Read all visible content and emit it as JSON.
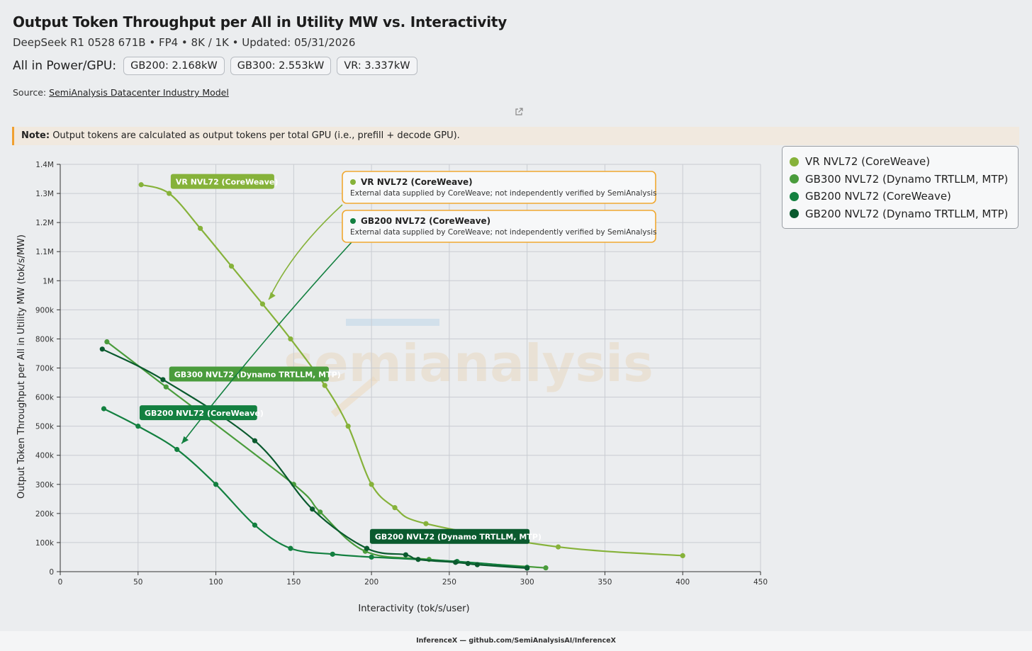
{
  "header": {
    "title": "Output Token Throughput per All in Utility MW vs. Interactivity",
    "subtitle": "DeepSeek R1 0528 671B • FP4 • 8K / 1K • Updated: 05/31/2026",
    "power_label": "All in Power/GPU:",
    "power_pills": [
      "GB200: 2.168kW",
      "GB300: 2.553kW",
      "VR: 3.337kW"
    ],
    "source_label": "Source:",
    "source_link": "SemiAnalysis Datacenter Industry Model"
  },
  "note": {
    "label": "Note:",
    "text": "Output tokens are calculated as output tokens per total GPU (i.e., prefill + decode GPU)."
  },
  "footer": {
    "text": "InferenceX — github.com/SemiAnalysisAI/InferenceX"
  },
  "watermark": {
    "text": "semianalysis"
  },
  "colors": {
    "vr": "#86b23a",
    "gb300": "#4a9c3c",
    "gb200_cw": "#138040",
    "gb200_dyn": "#0a5a2e",
    "note_accent": "#f0a030"
  },
  "chart_data": {
    "type": "line",
    "xlabel": "Interactivity (tok/s/user)",
    "ylabel": "Output Token Throughput per All in Utility MW (tok/s/MW)",
    "xlim": [
      0,
      450
    ],
    "ylim": [
      0,
      1400000
    ],
    "x_ticks": [
      0,
      50,
      100,
      150,
      200,
      250,
      300,
      350,
      400,
      450
    ],
    "x_tick_labels": [
      "0",
      "50",
      "100",
      "150",
      "200",
      "250",
      "300",
      "350",
      "400",
      "450"
    ],
    "y_ticks": [
      0,
      100000,
      200000,
      300000,
      400000,
      500000,
      600000,
      700000,
      800000,
      900000,
      1000000,
      1100000,
      1200000,
      1300000,
      1400000
    ],
    "y_tick_labels": [
      "0",
      "100k",
      "200k",
      "300k",
      "400k",
      "500k",
      "600k",
      "700k",
      "800k",
      "900k",
      "1M",
      "1.1M",
      "1.2M",
      "1.3M",
      "1.4M"
    ],
    "grid": true,
    "legend_position": "right",
    "series": [
      {
        "name": "VR NVL72 (CoreWeave)",
        "color": "#86b23a",
        "points": [
          [
            52,
            1330000
          ],
          [
            70,
            1300000
          ],
          [
            90,
            1180000
          ],
          [
            110,
            1050000
          ],
          [
            130,
            920000
          ],
          [
            148,
            800000
          ],
          [
            170,
            640000
          ],
          [
            185,
            500000
          ],
          [
            200,
            300000
          ],
          [
            215,
            220000
          ],
          [
            235,
            165000
          ],
          [
            320,
            85000
          ],
          [
            400,
            55000
          ]
        ]
      },
      {
        "name": "GB300 NVL72 (Dynamo TRTLLM, MTP)",
        "color": "#4a9c3c",
        "points": [
          [
            30,
            790000
          ],
          [
            68,
            635000
          ],
          [
            150,
            300000
          ],
          [
            167,
            205000
          ],
          [
            196,
            70000
          ],
          [
            237,
            42000
          ],
          [
            312,
            13000
          ]
        ]
      },
      {
        "name": "GB200 NVL72 (CoreWeave)",
        "color": "#138040",
        "points": [
          [
            28,
            560000
          ],
          [
            50,
            500000
          ],
          [
            75,
            420000
          ],
          [
            100,
            300000
          ],
          [
            125,
            160000
          ],
          [
            148,
            80000
          ],
          [
            175,
            60000
          ],
          [
            200,
            50000
          ],
          [
            255,
            35000
          ],
          [
            300,
            15000
          ]
        ]
      },
      {
        "name": "GB200 NVL72 (Dynamo TRTLLM, MTP)",
        "color": "#0a5a2e",
        "points": [
          [
            27,
            765000
          ],
          [
            66,
            660000
          ],
          [
            125,
            450000
          ],
          [
            162,
            215000
          ],
          [
            197,
            80000
          ],
          [
            222,
            58000
          ],
          [
            230,
            42000
          ],
          [
            254,
            32000
          ],
          [
            262,
            28000
          ],
          [
            268,
            24000
          ],
          [
            300,
            12000
          ]
        ]
      }
    ],
    "labels": [
      {
        "text": "VR NVL72 (CoreWeave)",
        "x": 71,
        "y": 1340000,
        "series": 0
      },
      {
        "text": "GB300 NVL72 (Dynamo TRTLLM, MTP)",
        "x": 70,
        "y": 678000,
        "series": 1
      },
      {
        "text": "GB200 NVL72 (CoreWeave)",
        "x": 51,
        "y": 545000,
        "series": 2
      },
      {
        "text": "GB200 NVL72 (Dynamo TRTLLM, MTP)",
        "x": 199,
        "y": 120000,
        "series": 3
      }
    ],
    "annotations": [
      {
        "title": "VR NVL72 (CoreWeave)",
        "text": "External data supplied by CoreWeave; not independently verified by SemiAnalysis",
        "series": 0,
        "target": [
          134,
          935000
        ]
      },
      {
        "title": "GB200 NVL72 (CoreWeave)",
        "text": "External data supplied by CoreWeave; not independently verified by SemiAnalysis",
        "series": 2,
        "target": [
          78,
          440000
        ]
      }
    ]
  }
}
